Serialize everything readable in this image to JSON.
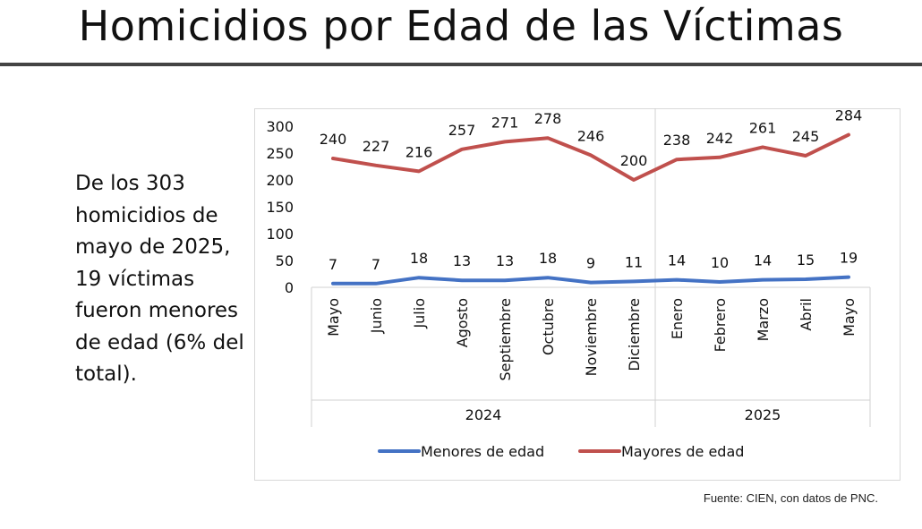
{
  "title": "Homicidios por Edad de las Víctimas",
  "description": "De los 303 homicidios de mayo de 2025, 19 víctimas fueron menores de edad (6% del total).",
  "source": "Fuente: CIEN, con datos de PNC.",
  "chart_data": {
    "type": "line",
    "title": "",
    "xlabel": "",
    "ylabel": "",
    "ylim": [
      0,
      300
    ],
    "yticks": [
      0,
      50,
      100,
      150,
      200,
      250,
      300
    ],
    "grid": false,
    "legend_position": "bottom",
    "categories": [
      "Mayo",
      "Junio",
      "Julio",
      "Agosto",
      "Septiembre",
      "Octubre",
      "Noviembre",
      "Diciembre",
      "Enero",
      "Febrero",
      "Marzo",
      "Abril",
      "Mayo"
    ],
    "groups": [
      {
        "label": "2024",
        "count": 8
      },
      {
        "label": "2025",
        "count": 5
      }
    ],
    "series": [
      {
        "name": "Menores de edad",
        "color": "#4472c4",
        "values": [
          7,
          7,
          18,
          13,
          13,
          18,
          9,
          11,
          14,
          10,
          14,
          15,
          19
        ]
      },
      {
        "name": "Mayores de edad",
        "color": "#c0504d",
        "values": [
          240,
          227,
          216,
          257,
          271,
          278,
          246,
          200,
          238,
          242,
          261,
          245,
          284
        ]
      }
    ]
  }
}
